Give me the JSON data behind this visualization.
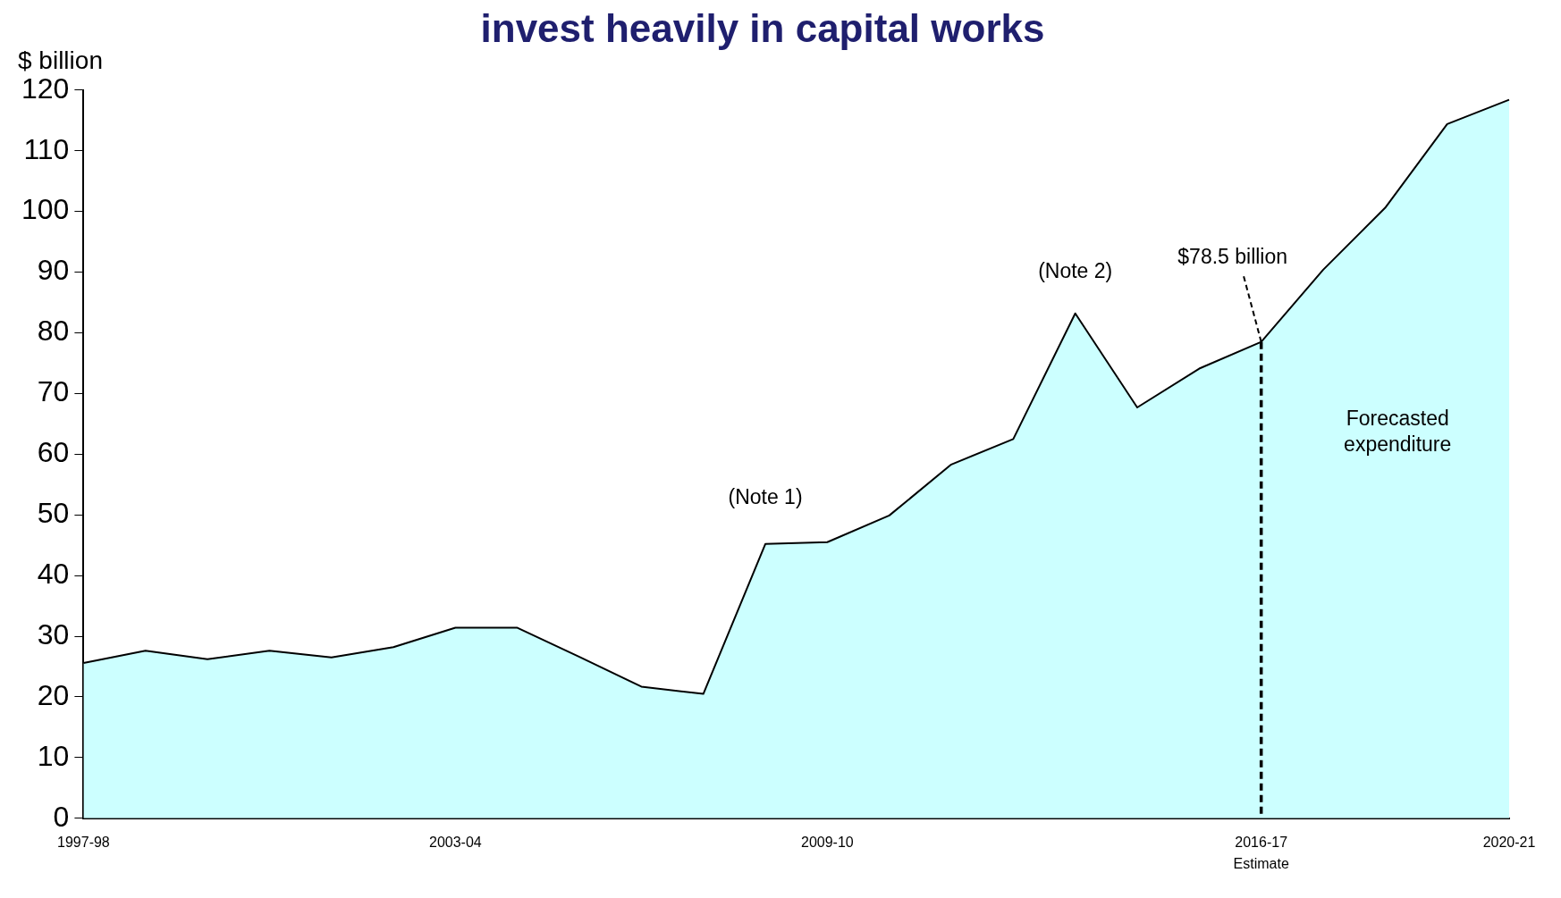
{
  "chart_data": {
    "type": "area",
    "title": "invest heavily in capital works",
    "ylabel": "$ billion",
    "categories": [
      "1997-98",
      null,
      null,
      null,
      null,
      null,
      "2003-04",
      null,
      null,
      null,
      null,
      null,
      "2009-10",
      null,
      null,
      null,
      null,
      null,
      null,
      "2016-17",
      null,
      null,
      null,
      "2020-21"
    ],
    "series": [
      {
        "color": "#ccffff",
        "values": [
          25.6,
          27.6,
          26.2,
          27.6,
          26.5,
          28.2,
          31.4,
          31.4,
          26.6,
          21.7,
          20.5,
          45.2,
          45.5,
          49.9,
          58.3,
          62.5,
          83.2,
          67.7,
          74.1,
          78.5,
          90.4,
          100.6,
          114.4,
          118.4
        ]
      }
    ],
    "ylim": [
      0,
      120
    ],
    "yticks": [
      0,
      10,
      20,
      30,
      40,
      50,
      60,
      70,
      80,
      90,
      100,
      110,
      120
    ],
    "grid": false,
    "legend": false,
    "ref_lines": [
      {
        "axis": "x",
        "value": "2016-17",
        "color": "#000000",
        "line_style": "dashed"
      }
    ],
    "annotations": [
      "(Note 1)",
      "(Note 2)",
      {
        "text": "$78.5 billion",
        "x": "2016-17",
        "y": 78.5
      },
      "Forecasted expenditure",
      "Estimate"
    ]
  }
}
